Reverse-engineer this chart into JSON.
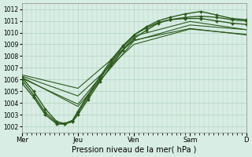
{
  "xlabel": "Pression niveau de la mer( hPa )",
  "bg_color": "#d8ede4",
  "grid_color": "#b0d4c0",
  "line_color": "#2d5a1e",
  "ylim": [
    1001.5,
    1012.5
  ],
  "yticks": [
    1002,
    1003,
    1004,
    1005,
    1006,
    1007,
    1008,
    1009,
    1010,
    1011,
    1012
  ],
  "day_labels": [
    "Mer",
    "Jeu",
    "Ven",
    "Sam",
    "D"
  ],
  "day_positions": [
    0,
    72,
    144,
    216,
    288
  ],
  "xlim": [
    0,
    288
  ],
  "series": [
    {
      "x": [
        0,
        15,
        30,
        45,
        55,
        65,
        72,
        85,
        100,
        115,
        130,
        144,
        160,
        175,
        190,
        210,
        230,
        250,
        270,
        288
      ],
      "y": [
        1006.2,
        1005.0,
        1003.5,
        1002.4,
        1002.25,
        1002.5,
        1003.2,
        1004.5,
        1006.0,
        1007.5,
        1008.8,
        1009.8,
        1010.5,
        1011.0,
        1011.3,
        1011.6,
        1011.8,
        1011.5,
        1011.2,
        1011.1
      ],
      "marker": true,
      "lw": 1.0
    },
    {
      "x": [
        0,
        15,
        30,
        45,
        55,
        65,
        72,
        85,
        100,
        115,
        130,
        144,
        160,
        175,
        190,
        210,
        230,
        250,
        270,
        288
      ],
      "y": [
        1005.7,
        1004.5,
        1003.0,
        1002.2,
        1002.2,
        1002.4,
        1003.0,
        1004.3,
        1005.8,
        1007.2,
        1008.5,
        1009.5,
        1010.2,
        1010.8,
        1011.1,
        1011.3,
        1011.4,
        1011.3,
        1011.1,
        1011.0
      ],
      "marker": true,
      "lw": 1.0
    },
    {
      "x": [
        0,
        15,
        30,
        45,
        55,
        65,
        72,
        85,
        100,
        115,
        130,
        144,
        160,
        175,
        190,
        210,
        230,
        250,
        270,
        288
      ],
      "y": [
        1006.0,
        1004.7,
        1003.2,
        1002.3,
        1002.22,
        1002.5,
        1003.3,
        1004.7,
        1006.2,
        1007.7,
        1008.9,
        1009.8,
        1010.4,
        1010.85,
        1011.1,
        1011.2,
        1011.2,
        1011.0,
        1010.8,
        1010.7
      ],
      "marker": true,
      "lw": 1.0
    },
    {
      "x": [
        0,
        72,
        144,
        216,
        288
      ],
      "y": [
        1006.2,
        1003.7,
        1009.3,
        1010.65,
        1010.25
      ],
      "marker": false,
      "lw": 0.8
    },
    {
      "x": [
        0,
        72,
        144,
        216,
        288
      ],
      "y": [
        1006.3,
        1004.6,
        1009.0,
        1010.3,
        1009.85
      ],
      "marker": false,
      "lw": 0.8
    },
    {
      "x": [
        0,
        72,
        144,
        216,
        288
      ],
      "y": [
        1006.1,
        1003.9,
        1009.7,
        1010.95,
        1010.25
      ],
      "marker": false,
      "lw": 0.8
    },
    {
      "x": [
        0,
        72,
        144,
        216,
        288
      ],
      "y": [
        1006.4,
        1005.25,
        1009.35,
        1010.35,
        1009.8
      ],
      "marker": false,
      "lw": 0.8
    }
  ],
  "marker_style": "D",
  "marker_size": 2.0
}
